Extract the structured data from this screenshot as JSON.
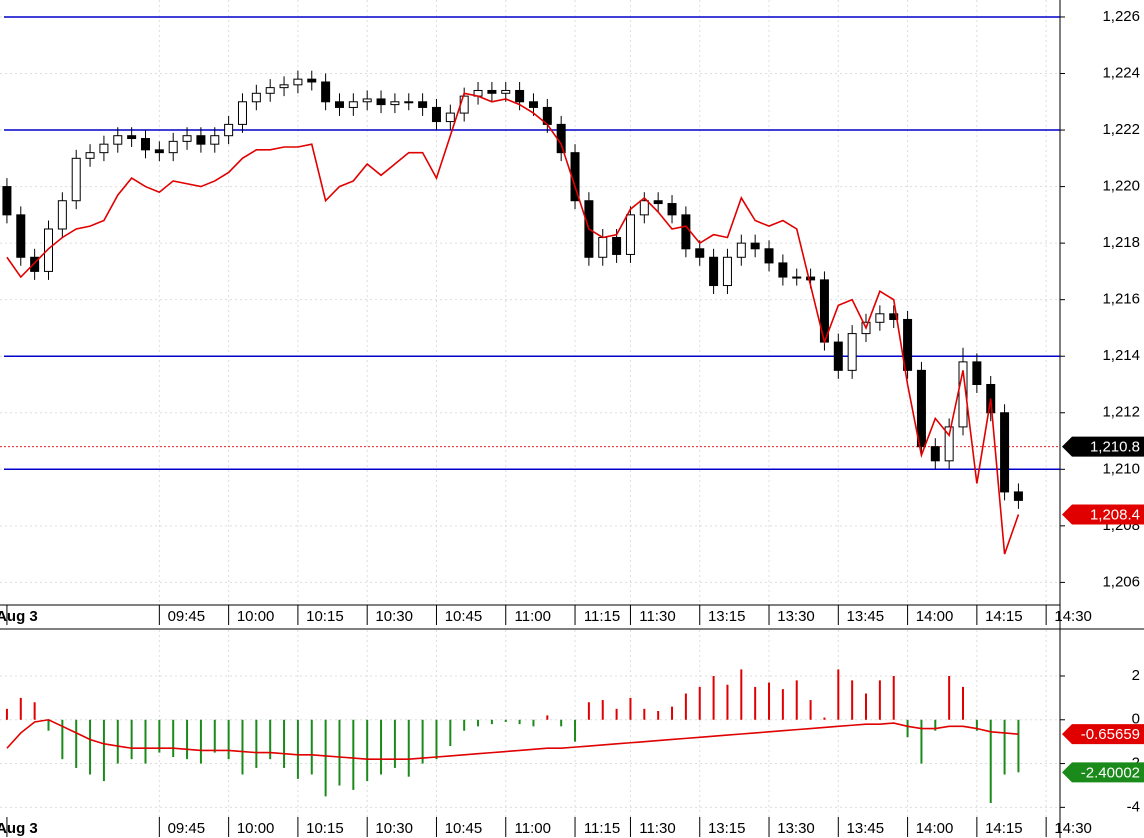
{
  "chart_data": [
    {
      "type": "candlestick",
      "xlim": [
        -0.5,
        76
      ],
      "xticks": [
        {
          "value": 0,
          "label": "Aug 3"
        },
        {
          "value": 11,
          "label": "09:45"
        },
        {
          "value": 16,
          "label": "10:00"
        },
        {
          "value": 21,
          "label": "10:15"
        },
        {
          "value": 26,
          "label": "10:30"
        },
        {
          "value": 31,
          "label": "10:45"
        },
        {
          "value": 36,
          "label": "11:00"
        },
        {
          "value": 41,
          "label": "11:15"
        },
        {
          "value": 45,
          "label": "11:30"
        },
        {
          "value": 50,
          "label": "13:15"
        },
        {
          "value": 55,
          "label": "13:30"
        },
        {
          "value": 60,
          "label": "13:45"
        },
        {
          "value": 65,
          "label": "14:00"
        },
        {
          "value": 70,
          "label": "14:15"
        },
        {
          "value": 75,
          "label": "14:30"
        }
      ],
      "ylim": [
        1205.2,
        1226.6
      ],
      "yticks": [
        {
          "value": 1206,
          "label": "1,206"
        },
        {
          "value": 1208,
          "label": "1,208"
        },
        {
          "value": 1210,
          "label": "1,210"
        },
        {
          "value": 1212,
          "label": "1,212"
        },
        {
          "value": 1214,
          "label": "1,214"
        },
        {
          "value": 1216,
          "label": "1,216"
        },
        {
          "value": 1218,
          "label": "1,218"
        },
        {
          "value": 1220,
          "label": "1,220"
        },
        {
          "value": 1222,
          "label": "1,222"
        },
        {
          "value": 1224,
          "label": "1,224"
        },
        {
          "value": 1226,
          "label": "1,226"
        }
      ],
      "grid": true,
      "levels": [
        1226,
        1222,
        1214,
        1210
      ],
      "level_color": "#0000cc",
      "price_marker": 1210.8,
      "price_marker_label": "1,210.8",
      "open": [
        1220,
        1219,
        1217.5,
        1217,
        1218.5,
        1219.5,
        1221,
        1221.2,
        1221.5,
        1221.8,
        1221.7,
        1221.3,
        1221.2,
        1221.6,
        1221.8,
        1221.5,
        1221.8,
        1222.2,
        1223,
        1223.3,
        1223.5,
        1223.6,
        1223.8,
        1223.7,
        1223,
        1222.8,
        1223,
        1223.1,
        1222.9,
        1223,
        1223,
        1222.8,
        1222.3,
        1222.6,
        1223.2,
        1223.4,
        1223.3,
        1223.4,
        1223,
        1222.8,
        1222.2,
        1221.2,
        1219.5,
        1217.5,
        1218.2,
        1217.6,
        1219,
        1219.5,
        1219.4,
        1219,
        1217.8,
        1217.5,
        1216.5,
        1217.5,
        1218,
        1217.8,
        1217.3,
        1216.8,
        1216.8,
        1216.7,
        1214.5,
        1213.5,
        1214.8,
        1215.2,
        1215.5,
        1215.3,
        1213.5,
        1210.8,
        1210.3,
        1211.5,
        1213.8,
        1213,
        1212,
        1209.2
      ],
      "high": [
        1220.3,
        1219.3,
        1217.8,
        1218.8,
        1219.8,
        1221.3,
        1221.5,
        1221.8,
        1222.1,
        1222.1,
        1222,
        1221.6,
        1221.9,
        1222.1,
        1222.1,
        1222.1,
        1222.5,
        1223.3,
        1223.6,
        1223.8,
        1223.9,
        1224.1,
        1224.1,
        1224,
        1223.3,
        1223.3,
        1223.4,
        1223.4,
        1223.3,
        1223.3,
        1223.3,
        1223.1,
        1222.9,
        1223.5,
        1223.7,
        1223.7,
        1223.7,
        1223.7,
        1223.3,
        1223.1,
        1222.5,
        1221.5,
        1219.8,
        1218.5,
        1218.5,
        1219.3,
        1219.8,
        1219.8,
        1219.7,
        1219.3,
        1218.1,
        1217.8,
        1217.8,
        1218.3,
        1218.3,
        1218.1,
        1217.6,
        1217.1,
        1217.1,
        1217,
        1214.8,
        1215.1,
        1215.5,
        1215.8,
        1215.8,
        1215.6,
        1213.8,
        1211.1,
        1211.8,
        1214.3,
        1214.1,
        1213.3,
        1212.3,
        1209.5
      ],
      "low": [
        1218.7,
        1217.2,
        1216.7,
        1216.7,
        1218.2,
        1219.2,
        1220.7,
        1220.9,
        1221.2,
        1221.4,
        1221,
        1220.9,
        1220.9,
        1221.3,
        1221.2,
        1221.2,
        1221.5,
        1221.9,
        1222.7,
        1223,
        1223.2,
        1223.3,
        1223.4,
        1222.7,
        1222.5,
        1222.5,
        1222.7,
        1222.6,
        1222.6,
        1222.7,
        1222.5,
        1222,
        1222,
        1222.3,
        1222.9,
        1223,
        1223,
        1222.7,
        1222.5,
        1221.9,
        1220.9,
        1219.2,
        1217.2,
        1217.2,
        1217.3,
        1217.3,
        1218.7,
        1219.1,
        1218.7,
        1217.5,
        1217.2,
        1216.2,
        1216.2,
        1217.2,
        1217.5,
        1217,
        1216.5,
        1216.5,
        1216.4,
        1214.2,
        1213.2,
        1213.2,
        1214.5,
        1214.9,
        1215,
        1213.2,
        1210.5,
        1210,
        1210,
        1211.2,
        1212.7,
        1211.7,
        1208.9,
        1208.6
      ],
      "close": [
        1219,
        1217.5,
        1217,
        1218.5,
        1219.5,
        1221,
        1221.2,
        1221.5,
        1221.8,
        1221.7,
        1221.3,
        1221.2,
        1221.6,
        1221.8,
        1221.5,
        1221.8,
        1222.2,
        1223,
        1223.3,
        1223.5,
        1223.6,
        1223.8,
        1223.7,
        1223,
        1222.8,
        1223,
        1223.1,
        1222.9,
        1223,
        1223,
        1222.8,
        1222.3,
        1222.6,
        1223.2,
        1223.4,
        1223.3,
        1223.4,
        1223,
        1222.8,
        1222.2,
        1221.2,
        1219.5,
        1217.5,
        1218.2,
        1217.6,
        1219,
        1219.5,
        1219.4,
        1219,
        1217.8,
        1217.5,
        1216.5,
        1217.5,
        1218,
        1217.8,
        1217.3,
        1216.8,
        1216.8,
        1216.7,
        1214.5,
        1213.5,
        1214.8,
        1215.2,
        1215.5,
        1215.3,
        1213.5,
        1210.8,
        1210.3,
        1211.5,
        1213.8,
        1213,
        1212,
        1209.2,
        1208.9
      ],
      "series": [
        {
          "color": "#e00000",
          "end_label": "1,208.4",
          "values": [
            1217.5,
            1216.8,
            1217.3,
            1217.8,
            1218.2,
            1218.5,
            1218.6,
            1218.8,
            1219.7,
            1220.3,
            1220,
            1219.8,
            1220.2,
            1220.1,
            1220,
            1220.2,
            1220.5,
            1221,
            1221.3,
            1221.3,
            1221.4,
            1221.4,
            1221.5,
            1219.5,
            1220,
            1220.2,
            1220.8,
            1220.4,
            1220.8,
            1221.2,
            1221.2,
            1220.3,
            1221.8,
            1223.3,
            1223.2,
            1223,
            1223.1,
            1222.9,
            1222.6,
            1222.2,
            1221.5,
            1220,
            1218.5,
            1218.2,
            1218.3,
            1219.2,
            1219.6,
            1219.1,
            1218.5,
            1218.6,
            1218,
            1218.3,
            1218.2,
            1219.6,
            1218.8,
            1218.6,
            1218.8,
            1218.5,
            1216.5,
            1214.5,
            1215.8,
            1216,
            1215,
            1216.3,
            1216,
            1213,
            1210.5,
            1211.8,
            1211.2,
            1213.5,
            1209.5,
            1212.5,
            1207,
            1208.4
          ]
        }
      ]
    },
    {
      "type": "bar",
      "xlim": [
        -0.5,
        76
      ],
      "xticks": [
        {
          "value": 0,
          "label": "Aug 3"
        },
        {
          "value": 11,
          "label": "09:45"
        },
        {
          "value": 16,
          "label": "10:00"
        },
        {
          "value": 21,
          "label": "10:15"
        },
        {
          "value": 26,
          "label": "10:30"
        },
        {
          "value": 31,
          "label": "10:45"
        },
        {
          "value": 36,
          "label": "11:00"
        },
        {
          "value": 41,
          "label": "11:15"
        },
        {
          "value": 45,
          "label": "11:30"
        },
        {
          "value": 50,
          "label": "13:15"
        },
        {
          "value": 55,
          "label": "13:30"
        },
        {
          "value": 60,
          "label": "13:45"
        },
        {
          "value": 65,
          "label": "14:00"
        },
        {
          "value": 70,
          "label": "14:15"
        },
        {
          "value": 75,
          "label": "14:30"
        }
      ],
      "ylim": [
        -5.4,
        4.1
      ],
      "yticks": [
        -4,
        -2,
        0,
        2
      ],
      "grid": true,
      "series": [
        {
          "color_up": "#e00000",
          "color_down": "#1a8a1a",
          "values": [
            0.5,
            1,
            0.8,
            -0.5,
            -1.8,
            -2.2,
            -2.5,
            -2.8,
            -2,
            -1.8,
            -2,
            -1.5,
            -1.7,
            -1.8,
            -2,
            -1.5,
            -1.8,
            -2.5,
            -2.2,
            -1.8,
            -2.2,
            -2.7,
            -2.5,
            -3.5,
            -3,
            -3.2,
            -2.8,
            -2.5,
            -2.2,
            -2.6,
            -2,
            -1.8,
            -1.2,
            -0.5,
            -0.3,
            -0.2,
            -0.1,
            -0.2,
            -0.3,
            0.2,
            -0.3,
            -1,
            0.8,
            0.9,
            0.5,
            1,
            0.5,
            0.4,
            0.6,
            1.2,
            1.5,
            2,
            1.6,
            2.3,
            1.5,
            1.7,
            1.4,
            1.8,
            0.9,
            0.1,
            2.3,
            1.8,
            1.2,
            1.8,
            2,
            -0.8,
            -2,
            -0.5,
            2,
            1.5,
            -0.5,
            -3.8,
            -2.5,
            -2.40002
          ]
        },
        {
          "color": "#e00000",
          "values": [
            -1.3,
            -0.6,
            -0.1,
            0,
            -0.3,
            -0.6,
            -0.9,
            -1.1,
            -1.2,
            -1.3,
            -1.3,
            -1.3,
            -1.3,
            -1.35,
            -1.4,
            -1.4,
            -1.4,
            -1.45,
            -1.5,
            -1.5,
            -1.55,
            -1.6,
            -1.6,
            -1.65,
            -1.7,
            -1.75,
            -1.8,
            -1.8,
            -1.8,
            -1.8,
            -1.75,
            -1.7,
            -1.65,
            -1.6,
            -1.55,
            -1.5,
            -1.45,
            -1.4,
            -1.35,
            -1.3,
            -1.3,
            -1.25,
            -1.2,
            -1.15,
            -1.1,
            -1.05,
            -1.0,
            -0.95,
            -0.9,
            -0.85,
            -0.8,
            -0.75,
            -0.7,
            -0.65,
            -0.6,
            -0.55,
            -0.5,
            -0.45,
            -0.4,
            -0.35,
            -0.3,
            -0.25,
            -0.2,
            -0.2,
            -0.15,
            -0.3,
            -0.4,
            -0.4,
            -0.3,
            -0.3,
            -0.4,
            -0.55,
            -0.6,
            -0.65659
          ]
        }
      ]
    }
  ]
}
